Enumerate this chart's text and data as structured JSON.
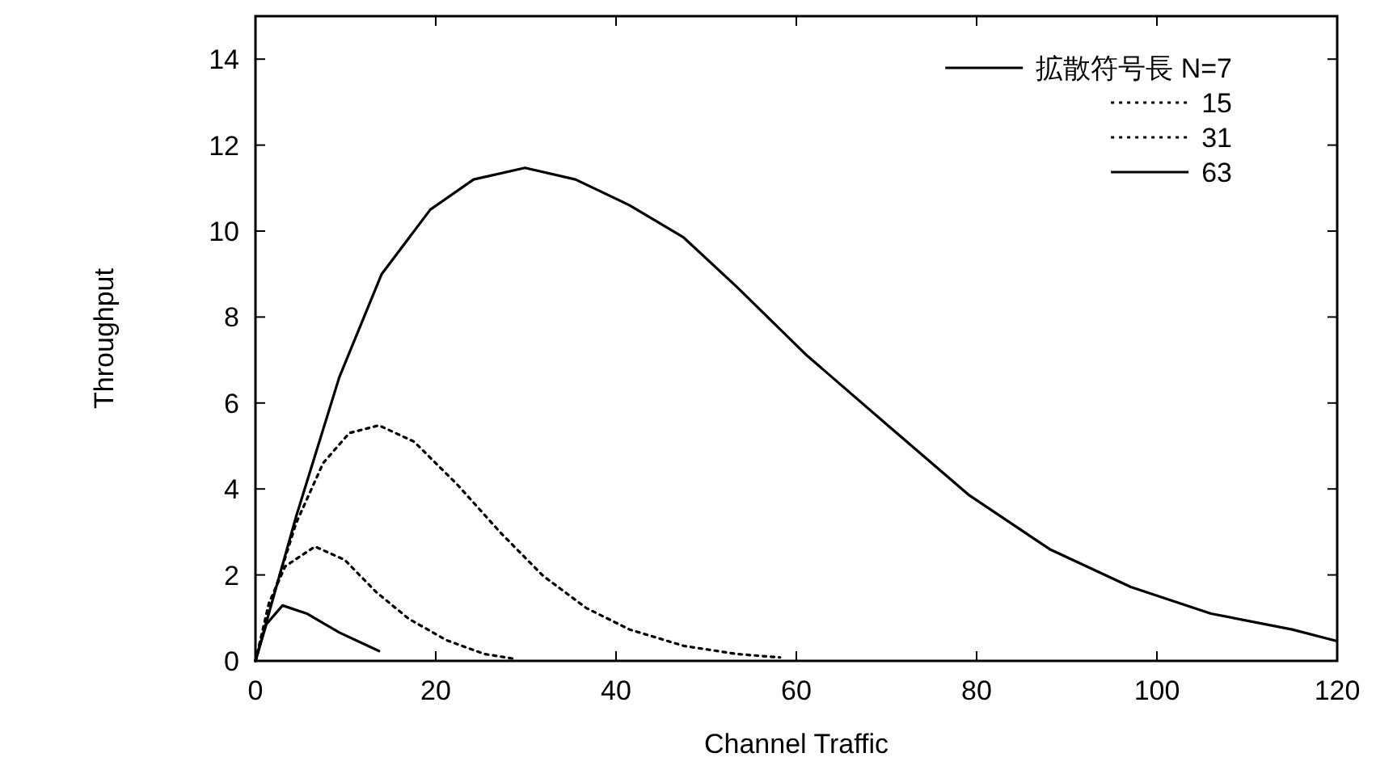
{
  "chart_data": {
    "type": "line",
    "xlabel": "Channel Traffic",
    "ylabel": "Throughput",
    "xlim": [
      0,
      120
    ],
    "ylim": [
      0,
      15
    ],
    "xticks": [
      0,
      20,
      40,
      60,
      80,
      100,
      120
    ],
    "yticks": [
      0,
      2,
      4,
      6,
      8,
      10,
      12,
      14
    ],
    "legend": "top right",
    "marker": "none",
    "series": [
      {
        "name": "拡散符号長 N=7",
        "color": "#000000",
        "line_style": "solid",
        "x": [
          0,
          1.2,
          3,
          5.7,
          9.3,
          13.7
        ],
        "values": [
          0,
          0.85,
          1.29,
          1.1,
          0.66,
          0.23
        ]
      },
      {
        "name": "15",
        "color": "#000000",
        "line_style": "dotted",
        "x": [
          0,
          1.5,
          3.3,
          6.6,
          9.9,
          13.4,
          17,
          21.2,
          25.4,
          29
        ],
        "values": [
          0,
          1.35,
          2.2,
          2.66,
          2.35,
          1.6,
          0.98,
          0.48,
          0.16,
          0.04
        ]
      },
      {
        "name": "31",
        "color": "#000000",
        "line_style": "dotted",
        "x": [
          0,
          2.1,
          4.5,
          7.5,
          10.4,
          13.7,
          17.6,
          22.4,
          27.2,
          31.9,
          36.7,
          41.5,
          47.5,
          53.4,
          58.2
        ],
        "values": [
          0,
          1.6,
          3.2,
          4.6,
          5.3,
          5.48,
          5.1,
          4.1,
          2.98,
          1.98,
          1.23,
          0.73,
          0.35,
          0.16,
          0.08
        ]
      },
      {
        "name": "63",
        "color": "#000000",
        "line_style": "solid",
        "x": [
          0,
          4.5,
          9.3,
          14,
          19.4,
          24.2,
          29.9,
          35.5,
          41.5,
          47.5,
          53.4,
          61.2,
          70.2,
          79.2,
          88.1,
          97.1,
          106,
          115,
          119.8
        ],
        "values": [
          0,
          3.35,
          6.6,
          9.0,
          10.5,
          11.2,
          11.47,
          11.2,
          10.6,
          9.85,
          8.7,
          7.1,
          5.47,
          3.85,
          2.6,
          1.72,
          1.1,
          0.73,
          0.47
        ]
      }
    ]
  }
}
